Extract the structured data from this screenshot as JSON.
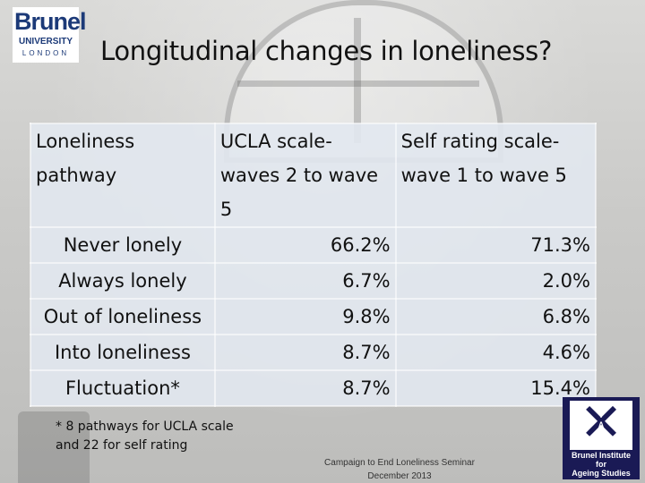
{
  "logo": {
    "name": "Brunel",
    "university": "UNIVERSITY",
    "city": "LONDON"
  },
  "title": "Longitudinal changes in loneliness?",
  "table": {
    "headers": [
      "Loneliness pathway",
      "UCLA scale-waves 2 to wave 5",
      "Self rating scale-wave 1 to wave 5"
    ],
    "rows": [
      {
        "pathway": "Never lonely",
        "ucla": "66.2%",
        "self": "71.3%"
      },
      {
        "pathway": "Always lonely",
        "ucla": "6.7%",
        "self": "2.0%"
      },
      {
        "pathway": "Out of loneliness",
        "ucla": "9.8%",
        "self": "6.8%"
      },
      {
        "pathway": "Into loneliness",
        "ucla": "8.7%",
        "self": "4.6%"
      },
      {
        "pathway": "Fluctuation*",
        "ucla": "8.7%",
        "self": "15.4%"
      }
    ]
  },
  "footnote": "* 8 pathways for UCLA scale and 22 for self rating",
  "footer": {
    "line1": "Campaign to End Loneliness Seminar",
    "line2": "December 2013"
  },
  "bias_logo": {
    "letters": [
      "B",
      "I",
      "A",
      "S"
    ],
    "name_line1": "Brunel Institute",
    "name_line2": "for",
    "name_line3": "Ageing Studies"
  },
  "colors": {
    "brunel_blue": "#1c3a78",
    "bias_navy": "#1a1a55",
    "table_fill": "#e2e8f0"
  }
}
